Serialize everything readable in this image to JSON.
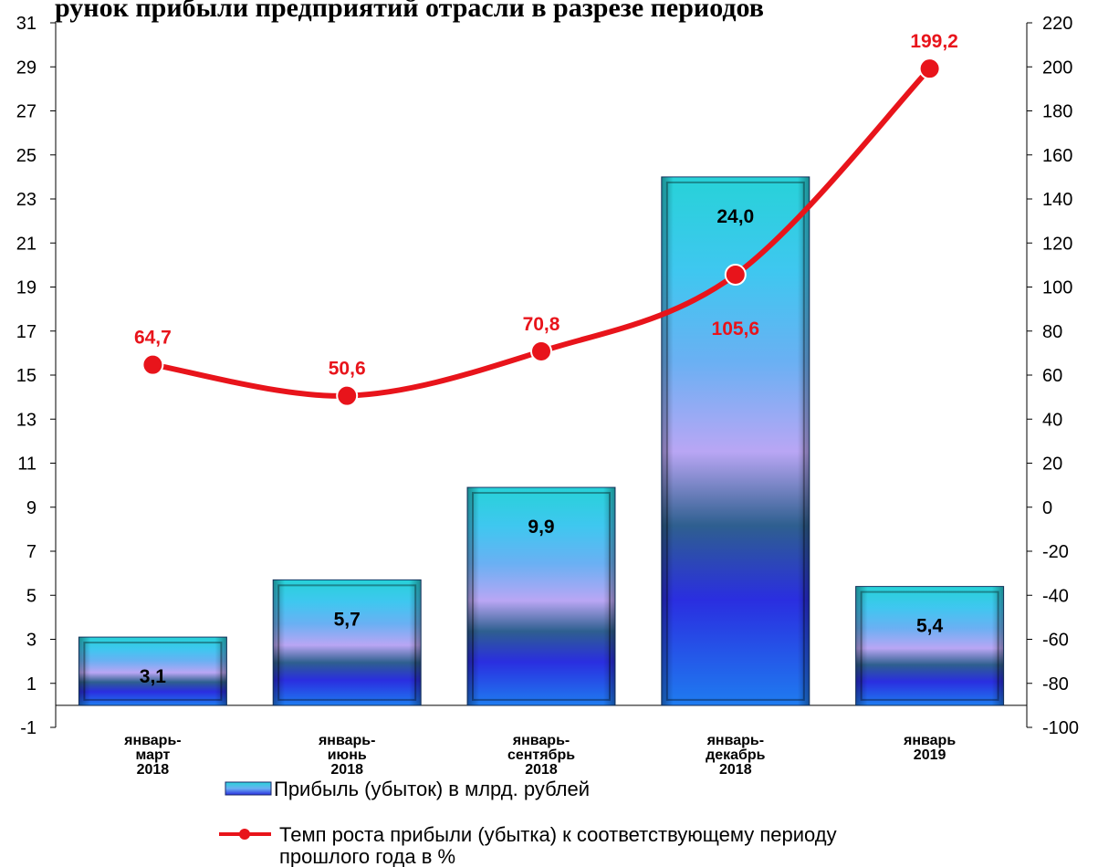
{
  "chart_data": {
    "type": "bar",
    "title": "рунок  прибыли  предприятий  отрасли  в  разрезе  периодов",
    "categories": [
      [
        "январь-",
        "март",
        "2018"
      ],
      [
        "январь-",
        "июнь",
        "2018"
      ],
      [
        "январь-",
        "сентябрь",
        "2018"
      ],
      [
        "январь-",
        "декабрь",
        "2018"
      ],
      [
        "январь",
        "2019"
      ]
    ],
    "series": [
      {
        "name": "Прибыль (убыток) в млрд. рублей",
        "type": "bar",
        "axis": "left",
        "values": [
          3.1,
          5.7,
          9.9,
          24.0,
          5.4
        ],
        "labels": [
          "3,1",
          "5,7",
          "9,9",
          "24,0",
          "5,4"
        ]
      },
      {
        "name": "Темп роста прибыли (убытка) к соответствующему периоду прошлого года в %",
        "name_lines": [
          "Темп роста прибыли (убытка) к соответствующему периоду",
          "прошлого года в %"
        ],
        "type": "line",
        "axis": "right",
        "values": [
          64.7,
          50.6,
          70.8,
          105.6,
          199.2
        ],
        "labels": [
          "64,7",
          "50,6",
          "70,8",
          "105,6",
          "199,2"
        ],
        "color": "#e8141b"
      }
    ],
    "y_left": {
      "lim": [
        -1,
        31
      ],
      "ticks": [
        "-1",
        "1",
        "3",
        "5",
        "7",
        "9",
        "11",
        "13",
        "15",
        "17",
        "19",
        "21",
        "23",
        "25",
        "27",
        "29",
        "31"
      ]
    },
    "y_right": {
      "lim": [
        -100,
        220
      ],
      "ticks": [
        "-100",
        "-80",
        "-60",
        "-40",
        "-20",
        "0",
        "20",
        "40",
        "60",
        "80",
        "100",
        "120",
        "140",
        "160",
        "180",
        "200",
        "220"
      ]
    },
    "grid": false,
    "legend": "bottom"
  }
}
